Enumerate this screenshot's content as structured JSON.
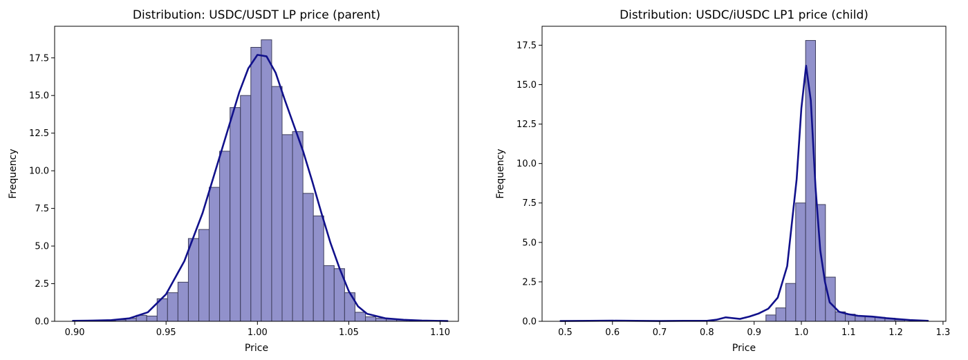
{
  "chart_data": [
    {
      "type": "bar",
      "title": "Distribution: USDC/USDT LP price (parent)",
      "xlabel": "Price",
      "ylabel": "Frequency",
      "xlim": [
        0.889,
        1.11
      ],
      "ylim": [
        0,
        19.6
      ],
      "xticks": [
        0.9,
        0.95,
        1.0,
        1.05,
        1.1
      ],
      "xtick_labels": [
        "0.90",
        "0.95",
        "1.00",
        "1.05",
        "1.10"
      ],
      "yticks": [
        0,
        2.5,
        5,
        7.5,
        10,
        12.5,
        15,
        17.5
      ],
      "ytick_labels": [
        "0.0",
        "2.5",
        "5.0",
        "7.5",
        "10.0",
        "12.5",
        "15.0",
        "17.5"
      ],
      "bar_color": "#8b8bc8",
      "line_color": "#11118b",
      "bins": [
        {
          "x0": 0.9166,
          "x1": 0.9223,
          "v": 0.05
        },
        {
          "x0": 0.9223,
          "x1": 0.928,
          "v": 0.1
        },
        {
          "x0": 0.928,
          "x1": 0.9337,
          "v": 0.2
        },
        {
          "x0": 0.9337,
          "x1": 0.9394,
          "v": 0.4
        },
        {
          "x0": 0.9394,
          "x1": 0.9451,
          "v": 0.35
        },
        {
          "x0": 0.9451,
          "x1": 0.9508,
          "v": 1.5
        },
        {
          "x0": 0.9508,
          "x1": 0.9565,
          "v": 1.9
        },
        {
          "x0": 0.9565,
          "x1": 0.9622,
          "v": 2.6
        },
        {
          "x0": 0.9622,
          "x1": 0.9679,
          "v": 5.5
        },
        {
          "x0": 0.9679,
          "x1": 0.9736,
          "v": 6.1
        },
        {
          "x0": 0.9736,
          "x1": 0.9793,
          "v": 8.9
        },
        {
          "x0": 0.9793,
          "x1": 0.985,
          "v": 11.3
        },
        {
          "x0": 0.985,
          "x1": 0.9907,
          "v": 14.2
        },
        {
          "x0": 0.9907,
          "x1": 0.9964,
          "v": 15.0
        },
        {
          "x0": 0.9964,
          "x1": 1.0021,
          "v": 18.2
        },
        {
          "x0": 1.0021,
          "x1": 1.0078,
          "v": 18.7
        },
        {
          "x0": 1.0078,
          "x1": 1.0135,
          "v": 15.6
        },
        {
          "x0": 1.0135,
          "x1": 1.0192,
          "v": 12.4
        },
        {
          "x0": 1.0192,
          "x1": 1.0249,
          "v": 12.6
        },
        {
          "x0": 1.0249,
          "x1": 1.0306,
          "v": 8.5
        },
        {
          "x0": 1.0306,
          "x1": 1.0363,
          "v": 7.0
        },
        {
          "x0": 1.0363,
          "x1": 1.042,
          "v": 3.7
        },
        {
          "x0": 1.042,
          "x1": 1.0477,
          "v": 3.5
        },
        {
          "x0": 1.0477,
          "x1": 1.0534,
          "v": 1.9
        },
        {
          "x0": 1.0534,
          "x1": 1.0591,
          "v": 0.6
        },
        {
          "x0": 1.0591,
          "x1": 1.0648,
          "v": 0.3
        },
        {
          "x0": 1.0648,
          "x1": 1.0705,
          "v": 0.2
        },
        {
          "x0": 1.0705,
          "x1": 1.0762,
          "v": 0.15
        },
        {
          "x0": 1.0762,
          "x1": 1.0819,
          "v": 0.1
        }
      ],
      "kde": [
        [
          0.899,
          0.03
        ],
        [
          0.91,
          0.05
        ],
        [
          0.92,
          0.08
        ],
        [
          0.93,
          0.2
        ],
        [
          0.94,
          0.6
        ],
        [
          0.95,
          1.8
        ],
        [
          0.96,
          4.0
        ],
        [
          0.97,
          7.2
        ],
        [
          0.98,
          11.2
        ],
        [
          0.99,
          15.2
        ],
        [
          0.995,
          16.8
        ],
        [
          1.0,
          17.7
        ],
        [
          1.005,
          17.6
        ],
        [
          1.01,
          16.5
        ],
        [
          1.015,
          14.7
        ],
        [
          1.02,
          13.0
        ],
        [
          1.025,
          11.3
        ],
        [
          1.03,
          9.3
        ],
        [
          1.035,
          7.2
        ],
        [
          1.04,
          5.2
        ],
        [
          1.045,
          3.5
        ],
        [
          1.05,
          2.0
        ],
        [
          1.055,
          1.0
        ],
        [
          1.06,
          0.5
        ],
        [
          1.07,
          0.2
        ],
        [
          1.08,
          0.1
        ],
        [
          1.09,
          0.05
        ],
        [
          1.104,
          0.02
        ]
      ]
    },
    {
      "type": "bar",
      "title": "Distribution: USDC/iUSDC LP1 price (child)",
      "xlabel": "Price",
      "ylabel": "Frequency",
      "xlim": [
        0.451,
        1.306
      ],
      "ylim": [
        0,
        18.7
      ],
      "xticks": [
        0.5,
        0.6,
        0.7,
        0.8,
        0.9,
        1.0,
        1.1,
        1.2,
        1.3
      ],
      "xtick_labels": [
        "0.5",
        "0.6",
        "0.7",
        "0.8",
        "0.9",
        "1.0",
        "1.1",
        "1.2",
        "1.3"
      ],
      "yticks": [
        0,
        2.5,
        5,
        7.5,
        10,
        12.5,
        15,
        17.5
      ],
      "ytick_labels": [
        "0.0",
        "2.5",
        "5.0",
        "7.5",
        "10.0",
        "12.5",
        "15.0",
        "17.5"
      ],
      "bar_color": "#8b8bc8",
      "line_color": "#11118b",
      "bins": [
        {
          "x0": 0.925,
          "x1": 0.946,
          "v": 0.4
        },
        {
          "x0": 0.946,
          "x1": 0.967,
          "v": 0.85
        },
        {
          "x0": 0.967,
          "x1": 0.988,
          "v": 2.4
        },
        {
          "x0": 0.988,
          "x1": 1.009,
          "v": 7.5
        },
        {
          "x0": 1.009,
          "x1": 1.03,
          "v": 17.8
        },
        {
          "x0": 1.03,
          "x1": 1.051,
          "v": 7.4
        },
        {
          "x0": 1.051,
          "x1": 1.072,
          "v": 2.8
        },
        {
          "x0": 1.072,
          "x1": 1.093,
          "v": 0.6
        },
        {
          "x0": 1.093,
          "x1": 1.114,
          "v": 0.45
        },
        {
          "x0": 1.114,
          "x1": 1.135,
          "v": 0.35
        },
        {
          "x0": 1.135,
          "x1": 1.156,
          "v": 0.3
        },
        {
          "x0": 1.156,
          "x1": 1.177,
          "v": 0.25
        },
        {
          "x0": 1.177,
          "x1": 1.198,
          "v": 0.2
        },
        {
          "x0": 1.198,
          "x1": 1.219,
          "v": 0.1
        }
      ],
      "kde": [
        [
          0.49,
          0.02
        ],
        [
          0.55,
          0.03
        ],
        [
          0.6,
          0.04
        ],
        [
          0.65,
          0.03
        ],
        [
          0.7,
          0.02
        ],
        [
          0.75,
          0.03
        ],
        [
          0.8,
          0.03
        ],
        [
          0.82,
          0.1
        ],
        [
          0.84,
          0.25
        ],
        [
          0.855,
          0.2
        ],
        [
          0.87,
          0.15
        ],
        [
          0.89,
          0.3
        ],
        [
          0.91,
          0.5
        ],
        [
          0.93,
          0.8
        ],
        [
          0.95,
          1.5
        ],
        [
          0.97,
          3.5
        ],
        [
          0.99,
          9.0
        ],
        [
          1.0,
          13.5
        ],
        [
          1.01,
          16.2
        ],
        [
          1.02,
          14.0
        ],
        [
          1.03,
          8.5
        ],
        [
          1.04,
          4.5
        ],
        [
          1.05,
          2.5
        ],
        [
          1.06,
          1.2
        ],
        [
          1.08,
          0.6
        ],
        [
          1.1,
          0.45
        ],
        [
          1.12,
          0.35
        ],
        [
          1.15,
          0.3
        ],
        [
          1.18,
          0.2
        ],
        [
          1.2,
          0.15
        ],
        [
          1.23,
          0.08
        ],
        [
          1.268,
          0.03
        ]
      ]
    }
  ]
}
